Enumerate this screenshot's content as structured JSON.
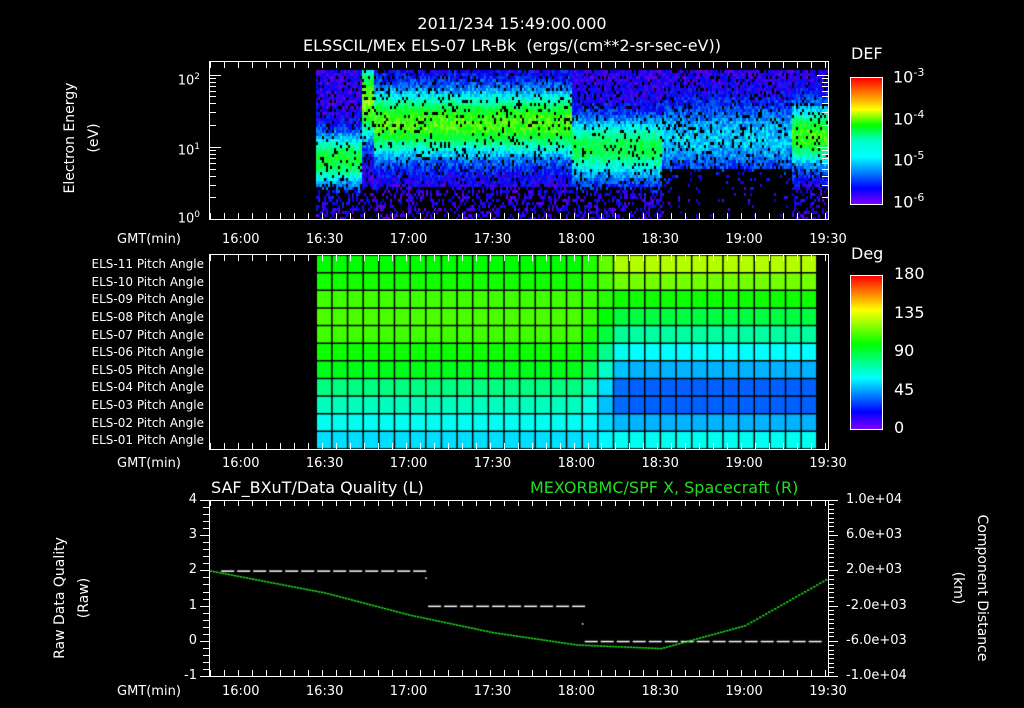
{
  "header": {
    "timestamp": "2011/234 15:49:00.000",
    "subtitle": "ELSSCIL/MEx ELS-07 LR-Bk  (ergs/(cm**2-sr-sec-eV))"
  },
  "time_axis": {
    "label": "GMT(min)",
    "ticks": [
      "16:00",
      "16:30",
      "17:00",
      "17:30",
      "18:00",
      "18:30",
      "19:00",
      "19:30"
    ],
    "start": "15:49",
    "end": "19:30"
  },
  "panel1": {
    "ylabel": "Electron Energy",
    "yunit": "(eV)",
    "yticks": [
      "10^0",
      "10^1",
      "10^2"
    ],
    "colorbar": {
      "title": "DEF",
      "ticks": [
        "10^-3",
        "10^-4",
        "10^-5",
        "10^-6"
      ]
    }
  },
  "panel2": {
    "rows": [
      "ELS-11 Pitch Angle",
      "ELS-10 Pitch Angle",
      "ELS-09 Pitch Angle",
      "ELS-08 Pitch Angle",
      "ELS-07 Pitch Angle",
      "ELS-06 Pitch Angle",
      "ELS-05 Pitch Angle",
      "ELS-04 Pitch Angle",
      "ELS-03 Pitch Angle",
      "ELS-02 Pitch Angle",
      "ELS-01 Pitch Angle"
    ],
    "colorbar": {
      "title": "Deg",
      "ticks": [
        "180",
        "135",
        "90",
        "45",
        "0"
      ]
    }
  },
  "panel3": {
    "left_title": "SAF_BXuT/Data Quality (L)",
    "right_title": "MEXORBMC/SPF X, Spacecraft (R)",
    "right_title_color": "#22dd22",
    "ylabel_left": "Raw Data Quality",
    "yunit_left": "(Raw)",
    "yticks_left": [
      "4",
      "3",
      "2",
      "1",
      "0",
      "-1"
    ],
    "ylabel_right": "Component Distance",
    "yunit_right": "(km)",
    "yticks_right": [
      "1.0e+04",
      "6.0e+03",
      "2.0e+03",
      "-2.0e+03",
      "-6.0e+03",
      "-1.0e+04"
    ]
  },
  "chart_data": [
    {
      "type": "heatmap",
      "title": "ELSSCIL/MEx ELS-07 LR-Bk (ergs/(cm**2-sr-sec-eV))",
      "xlabel": "GMT(min)",
      "ylabel": "Electron Energy (eV)",
      "yscale": "log",
      "ylim": [
        1,
        150
      ],
      "x_ticks": [
        "16:00",
        "16:30",
        "17:00",
        "17:30",
        "18:00",
        "18:30",
        "19:00",
        "19:30"
      ],
      "data_start": "16:27",
      "colorbar": {
        "label": "DEF",
        "scale": "log",
        "range": [
          1e-06,
          0.001
        ]
      },
      "features": [
        {
          "time": "16:27-16:42",
          "peak_energy_eV": 7,
          "level": "~3e-5"
        },
        {
          "time": "16:43-16:46",
          "peak_energy_eV": 50,
          "level": "~1e-4"
        },
        {
          "time": "16:47-17:58",
          "peak_energy_eV": 25,
          "level": "~8e-5"
        },
        {
          "time": "17:58-18:30",
          "peak_energy_eV": 10,
          "level": "~3e-5"
        },
        {
          "time": "18:30-19:17",
          "peak_energy_eV": 15,
          "level": "~5e-6"
        },
        {
          "time": "19:17-19:30",
          "peak_energy_eV": 15,
          "level": "~5e-5"
        }
      ]
    },
    {
      "type": "heatmap",
      "title": "Pitch Angle",
      "xlabel": "GMT(min)",
      "categories": [
        "ELS-11",
        "ELS-10",
        "ELS-09",
        "ELS-08",
        "ELS-07",
        "ELS-06",
        "ELS-05",
        "ELS-04",
        "ELS-03",
        "ELS-02",
        "ELS-01"
      ],
      "colorbar": {
        "label": "Deg",
        "range": [
          0,
          180
        ]
      },
      "data_start": "16:27",
      "data_end": "19:26",
      "series": [
        {
          "name": "16:27-18:00",
          "values": [
            100,
            103,
            110,
            112,
            110,
            102,
            96,
            80,
            70,
            62,
            55
          ]
        },
        {
          "name": "18:10-19:26",
          "values": [
            128,
            118,
            102,
            90,
            75,
            60,
            48,
            35,
            35,
            48,
            62
          ]
        }
      ]
    },
    {
      "type": "line",
      "title": "SAF_BXuT/Data Quality (L) / MEXORBMC/SPF X, Spacecraft (R)",
      "xlabel": "GMT(min)",
      "ylabel": "Raw Data Quality (Raw)",
      "ylabel_right": "Component Distance (km)",
      "ylim": [
        -1,
        4
      ],
      "ylim_right": [
        -10000,
        10000
      ],
      "series": [
        {
          "name": "Data Quality (L)",
          "color": "#ffffff",
          "x": [
            "16:00",
            "17:06",
            "17:07",
            "18:02",
            "18:03",
            "19:27"
          ],
          "values": [
            2,
            2,
            1,
            1,
            0,
            0
          ]
        },
        {
          "name": "SPF X Spacecraft (R)",
          "color": "#22dd22",
          "x": [
            "15:49",
            "16:30",
            "17:00",
            "17:30",
            "18:00",
            "18:30",
            "19:00",
            "19:30"
          ],
          "values": [
            2000,
            -500,
            -3000,
            -5000,
            -6400,
            -6800,
            -4200,
            1200
          ]
        }
      ]
    }
  ]
}
